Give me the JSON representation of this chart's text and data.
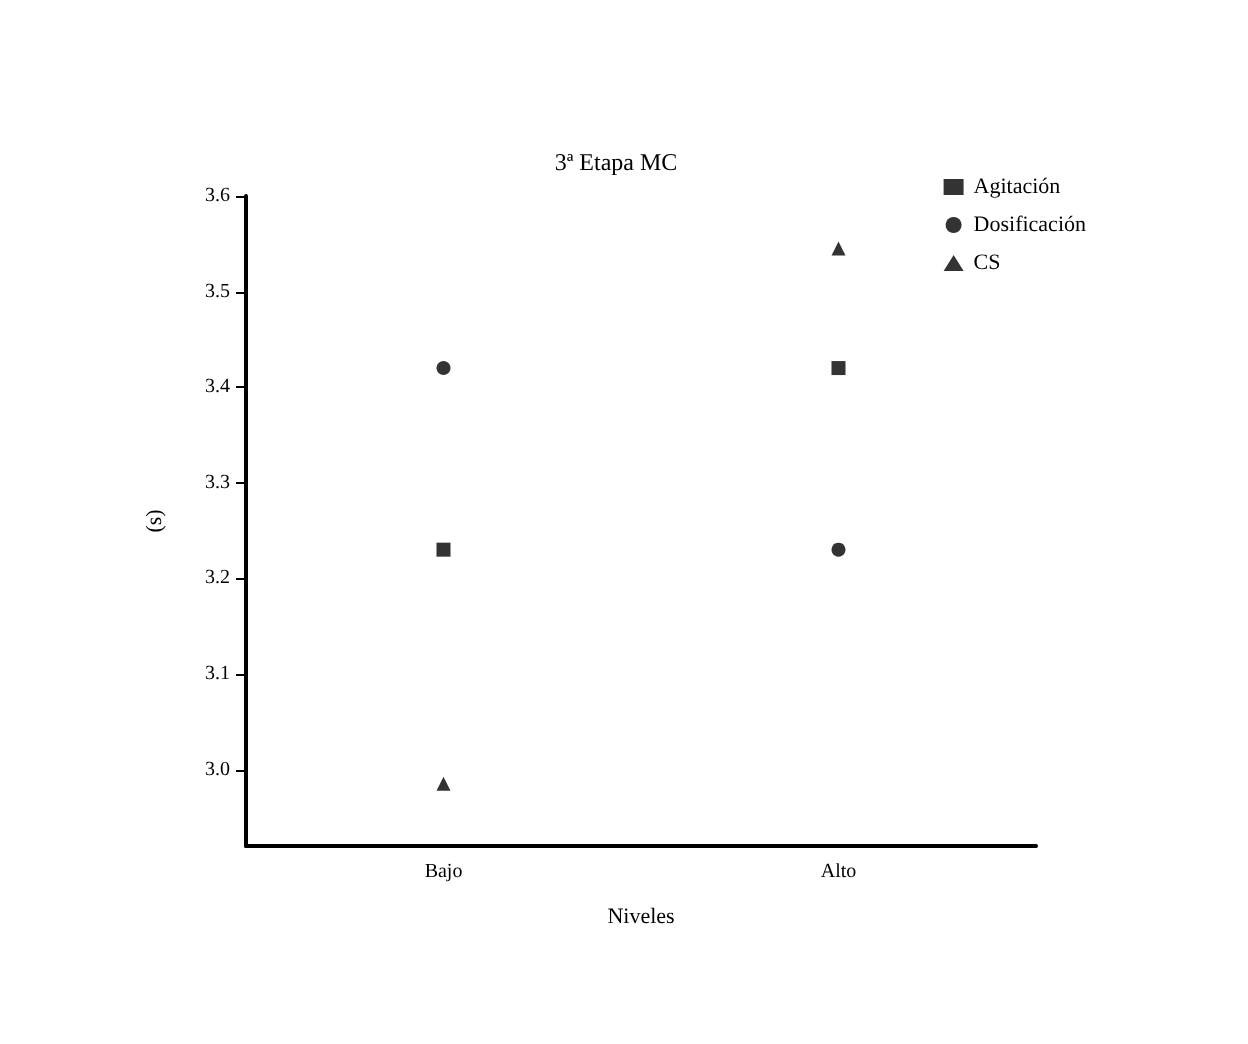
{
  "chart_data": {
    "type": "scatter",
    "title": "3ª Etapa MC",
    "xlabel": "Niveles",
    "ylabel": "(s)",
    "categories": [
      "Bajo",
      "Alto"
    ],
    "series": [
      {
        "name": "Agitación",
        "color": "#000000",
        "marker": "square",
        "values": [
          3.23,
          3.42
        ]
      },
      {
        "name": "Dosificación",
        "color": "#000000",
        "marker": "circle",
        "values": [
          3.42,
          3.23
        ]
      },
      {
        "name": "CS",
        "color": "#000000",
        "marker": "triangle",
        "values": [
          2.985,
          3.545
        ]
      }
    ],
    "ylim": [
      2.92,
      3.6
    ],
    "yticks": [
      {
        "value": 3,
        "label": "3.0"
      },
      3.1,
      3.2,
      3.3,
      3.4,
      3.5,
      {
        "value": 3.6,
        "label": "3.6"
      }
    ],
    "grid": false,
    "legend": "top right"
  }
}
